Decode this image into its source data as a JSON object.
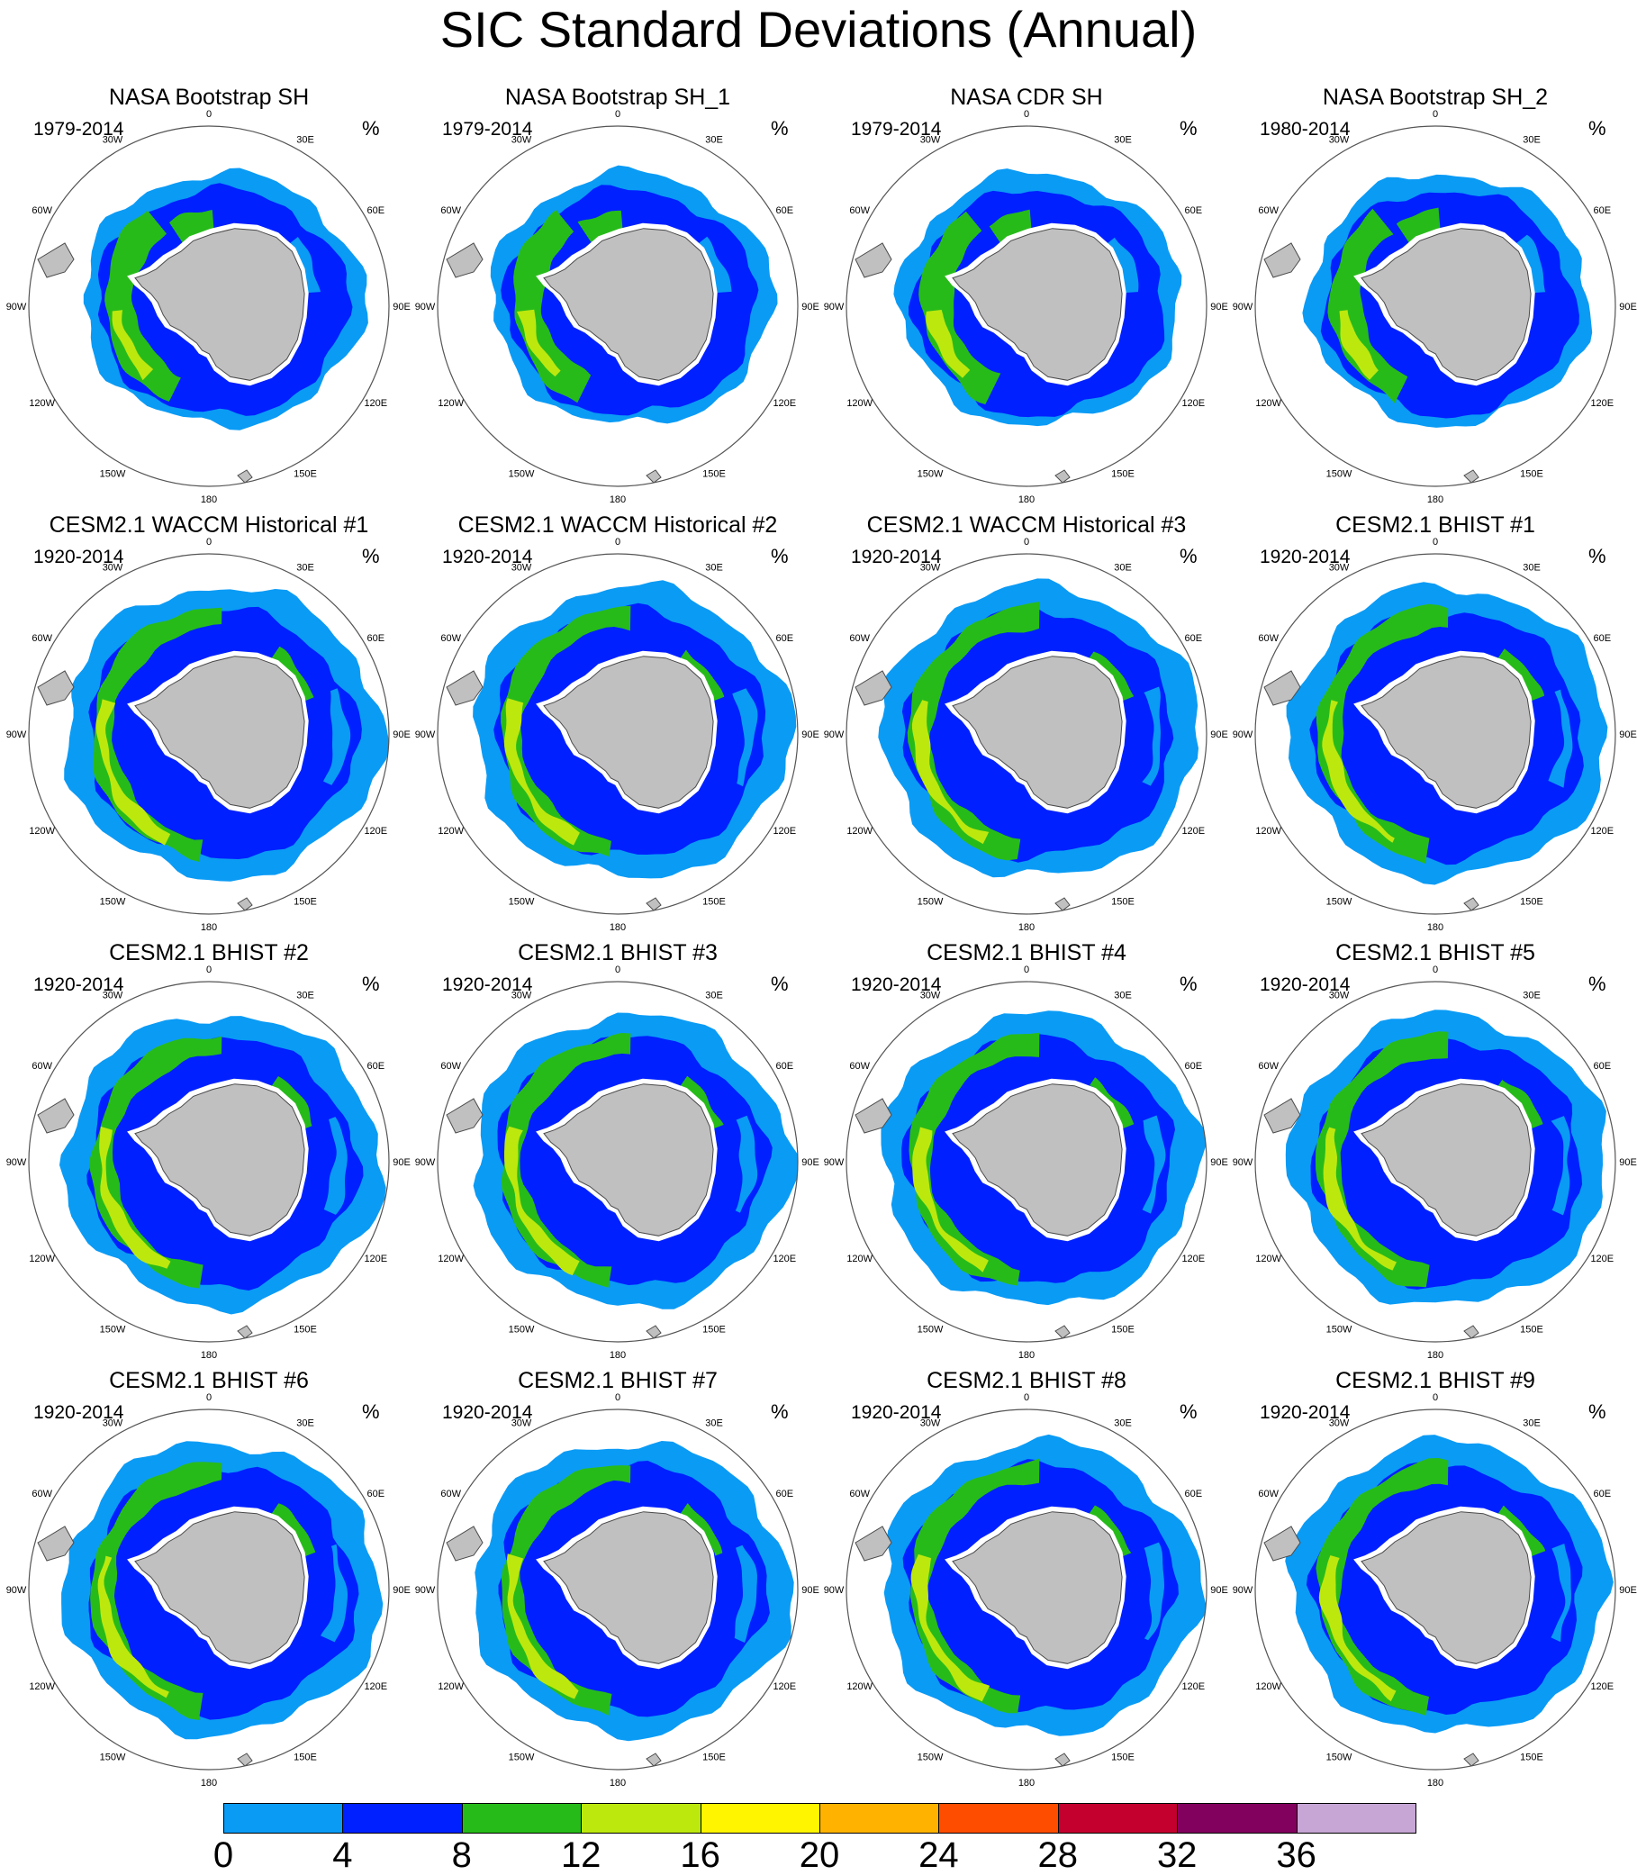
{
  "title": "SIC Standard Deviations (Annual)",
  "units": "%",
  "colors": {
    "land": "#c0c0c0",
    "coast": "#4a4a4a",
    "ring": "#555555"
  },
  "lon_labels": [
    "0",
    "30E",
    "60E",
    "90E",
    "120E",
    "150E",
    "180",
    "150W",
    "120W",
    "90W",
    "60W",
    "30W"
  ],
  "panels": [
    {
      "title": "NASA Bootstrap SH",
      "years": "1979-2014",
      "kind": "obs"
    },
    {
      "title": "NASA Bootstrap SH_1",
      "years": "1979-2014",
      "kind": "obs"
    },
    {
      "title": "NASA CDR SH",
      "years": "1979-2014",
      "kind": "obs"
    },
    {
      "title": "NASA Bootstrap SH_2",
      "years": "1980-2014",
      "kind": "obs"
    },
    {
      "title": "CESM2.1 WACCM Historical #1",
      "years": "1920-2014",
      "kind": "model"
    },
    {
      "title": "CESM2.1 WACCM Historical #2",
      "years": "1920-2014",
      "kind": "model"
    },
    {
      "title": "CESM2.1 WACCM Historical #3",
      "years": "1920-2014",
      "kind": "model"
    },
    {
      "title": "CESM2.1 BHIST #1",
      "years": "1920-2014",
      "kind": "model"
    },
    {
      "title": "CESM2.1 BHIST #2",
      "years": "1920-2014",
      "kind": "model"
    },
    {
      "title": "CESM2.1 BHIST #3",
      "years": "1920-2014",
      "kind": "model"
    },
    {
      "title": "CESM2.1 BHIST #4",
      "years": "1920-2014",
      "kind": "model"
    },
    {
      "title": "CESM2.1 BHIST #5",
      "years": "1920-2014",
      "kind": "model"
    },
    {
      "title": "CESM2.1 BHIST #6",
      "years": "1920-2014",
      "kind": "model"
    },
    {
      "title": "CESM2.1 BHIST #7",
      "years": "1920-2014",
      "kind": "model"
    },
    {
      "title": "CESM2.1 BHIST #8",
      "years": "1920-2014",
      "kind": "model"
    },
    {
      "title": "CESM2.1 BHIST #9",
      "years": "1920-2014",
      "kind": "model"
    }
  ],
  "colorbar": {
    "labels": [
      "0",
      "4",
      "8",
      "12",
      "16",
      "20",
      "24",
      "28",
      "32",
      "36"
    ],
    "colors": [
      "#0a9bf5",
      "#0020ff",
      "#27bb1a",
      "#bde80e",
      "#fff500",
      "#ffb300",
      "#ff4d00",
      "#c4002f",
      "#82005e",
      "#c7a6d6"
    ]
  }
}
